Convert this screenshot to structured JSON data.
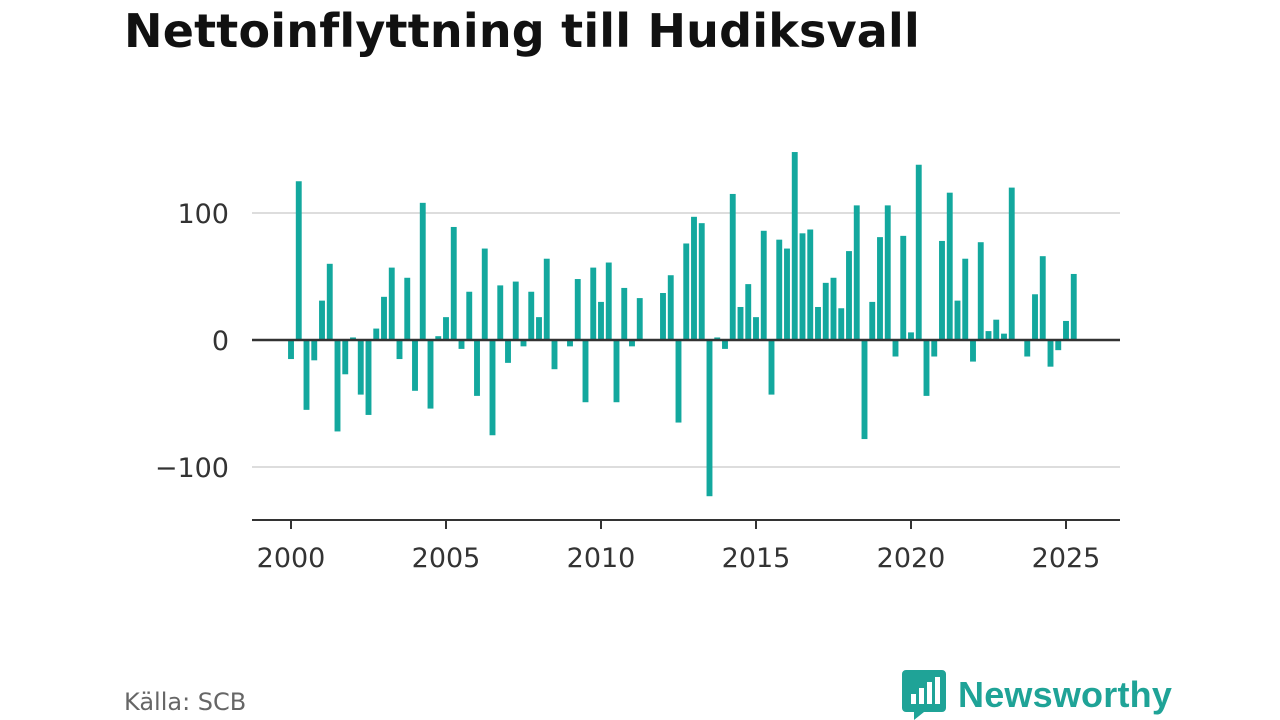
{
  "title": "Nettoinflyttning till Hudiksvall",
  "source": "Källa: SCB",
  "brand": {
    "name": "Newsworthy",
    "icon": "newsworthy-logo-icon",
    "color": "#1fa397"
  },
  "colors": {
    "bar": "#13a89e",
    "grid": "#dddddd",
    "axis": "#333333"
  },
  "chart_data": {
    "type": "bar",
    "title": "Nettoinflyttning till Hudiksvall",
    "xlabel": "",
    "ylabel": "",
    "ylim": [
      -140,
      155
    ],
    "xlim": [
      1998.8,
      2026.8
    ],
    "yticks": [
      -100,
      0,
      100
    ],
    "ytick_labels": [
      "−100",
      "0",
      "100"
    ],
    "xticks": [
      2000,
      2005,
      2010,
      2015,
      2020,
      2025
    ],
    "xtick_labels": [
      "2000",
      "2005",
      "2010",
      "2015",
      "2020",
      "2025"
    ],
    "grid": true,
    "start_year": 2000,
    "periods_per_year": 4,
    "values": [
      -15,
      125,
      -55,
      -16,
      31,
      60,
      -72,
      -27,
      2,
      -43,
      -59,
      9,
      34,
      57,
      -15,
      49,
      -40,
      108,
      -54,
      3,
      18,
      89,
      -7,
      38,
      -44,
      72,
      -75,
      43,
      -18,
      46,
      -5,
      38,
      18,
      64,
      -23,
      0,
      -5,
      48,
      -49,
      57,
      30,
      61,
      -49,
      41,
      -5,
      33,
      0,
      0,
      37,
      51,
      -65,
      76,
      97,
      92,
      -123,
      2,
      -7,
      115,
      26,
      44,
      18,
      86,
      -43,
      79,
      72,
      148,
      84,
      87,
      26,
      45,
      49,
      25,
      70,
      106,
      -78,
      30,
      81,
      106,
      -13,
      82,
      6,
      138,
      -44,
      -13,
      78,
      116,
      31,
      64,
      -17,
      77,
      7,
      16,
      5,
      120,
      0,
      -13,
      36,
      66,
      -21,
      -8,
      15,
      52
    ]
  }
}
